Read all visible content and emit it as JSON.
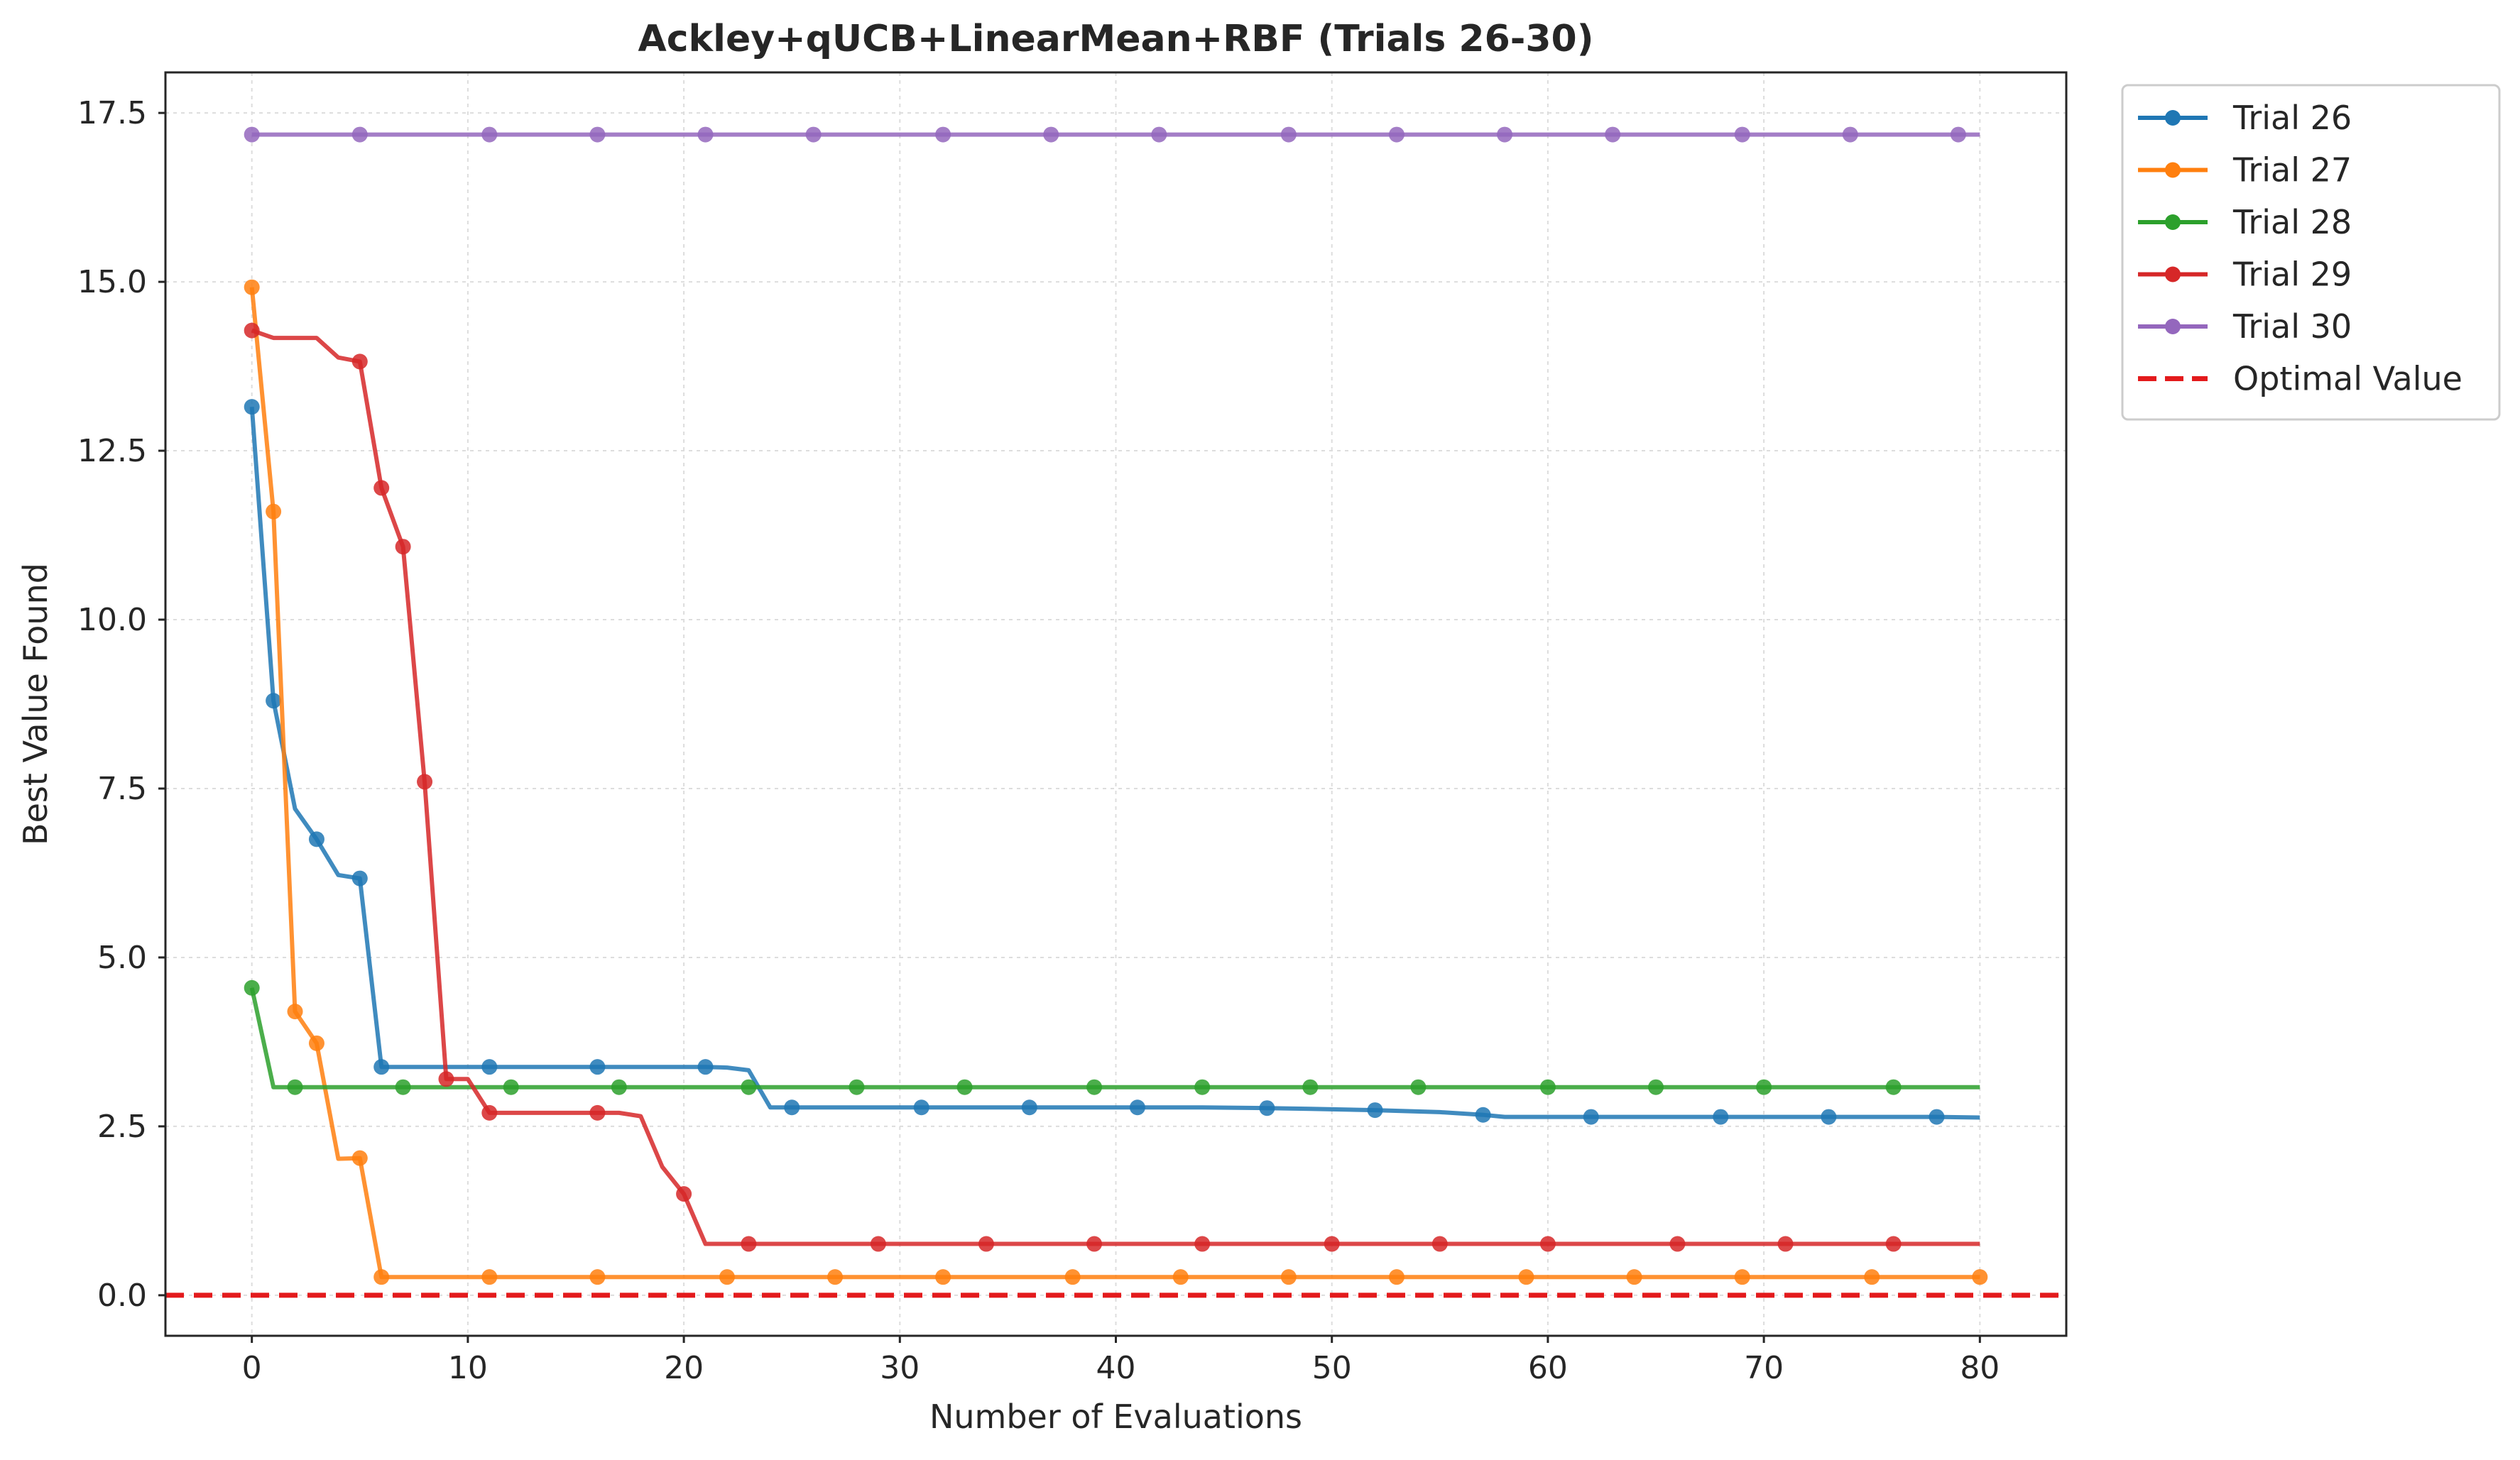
{
  "chart_data": {
    "type": "line",
    "title": "Ackley+qUCB+LinearMean+RBF (Trials 26-30)",
    "xlabel": "Number of Evaluations",
    "ylabel": "Best Value Found",
    "xlim": [
      -4,
      84
    ],
    "ylim": [
      -0.6,
      18.1
    ],
    "xticks": [
      0,
      10,
      20,
      30,
      40,
      50,
      60,
      70,
      80
    ],
    "yticks": [
      0.0,
      2.5,
      5.0,
      7.5,
      10.0,
      12.5,
      15.0,
      17.5
    ],
    "xtick_labels": [
      "0",
      "10",
      "20",
      "30",
      "40",
      "50",
      "60",
      "70",
      "80"
    ],
    "ytick_labels": [
      "0.0",
      "2.5",
      "5.0",
      "7.5",
      "10.0",
      "12.5",
      "15.0",
      "17.5"
    ],
    "grid": true,
    "legend_position": "outside-top-right",
    "series": [
      {
        "name": "Trial 26",
        "color": "#1f77b4",
        "points": [
          [
            0,
            13.15
          ],
          [
            1,
            8.8
          ],
          [
            2,
            7.2
          ],
          [
            3,
            6.75
          ],
          [
            4,
            6.22
          ],
          [
            5,
            6.17
          ],
          [
            6,
            3.38
          ],
          [
            7,
            3.38
          ],
          [
            11,
            3.38
          ],
          [
            16,
            3.38
          ],
          [
            21,
            3.38
          ],
          [
            22,
            3.37
          ],
          [
            23,
            3.33
          ],
          [
            24,
            2.78
          ],
          [
            25,
            2.78
          ],
          [
            31,
            2.78
          ],
          [
            36,
            2.78
          ],
          [
            41,
            2.78
          ],
          [
            44,
            2.78
          ],
          [
            47,
            2.77
          ],
          [
            49,
            2.76
          ],
          [
            52,
            2.74
          ],
          [
            55,
            2.71
          ],
          [
            57,
            2.67
          ],
          [
            58,
            2.64
          ],
          [
            62,
            2.64
          ],
          [
            68,
            2.64
          ],
          [
            73,
            2.64
          ],
          [
            78,
            2.64
          ],
          [
            80,
            2.63
          ]
        ],
        "markers": [
          [
            0,
            13.15
          ],
          [
            1,
            8.8
          ],
          [
            3,
            6.75
          ],
          [
            5,
            6.17
          ],
          [
            6,
            3.38
          ],
          [
            11,
            3.38
          ],
          [
            16,
            3.38
          ],
          [
            21,
            3.38
          ],
          [
            25,
            2.78
          ],
          [
            31,
            2.78
          ],
          [
            36,
            2.78
          ],
          [
            41,
            2.78
          ],
          [
            47,
            2.77
          ],
          [
            52,
            2.74
          ],
          [
            57,
            2.67
          ],
          [
            62,
            2.64
          ],
          [
            68,
            2.64
          ],
          [
            73,
            2.64
          ],
          [
            78,
            2.64
          ]
        ]
      },
      {
        "name": "Trial 27",
        "color": "#ff7f0e",
        "points": [
          [
            0,
            14.92
          ],
          [
            1,
            11.6
          ],
          [
            2,
            4.2
          ],
          [
            3,
            3.73
          ],
          [
            4,
            2.02
          ],
          [
            5,
            2.03
          ],
          [
            6,
            0.27
          ],
          [
            80,
            0.27
          ]
        ],
        "markers": [
          [
            0,
            14.92
          ],
          [
            1,
            11.6
          ],
          [
            2,
            4.2
          ],
          [
            3,
            3.73
          ],
          [
            5,
            2.03
          ],
          [
            6,
            0.27
          ],
          [
            11,
            0.27
          ],
          [
            16,
            0.27
          ],
          [
            22,
            0.27
          ],
          [
            27,
            0.27
          ],
          [
            32,
            0.27
          ],
          [
            38,
            0.27
          ],
          [
            43,
            0.27
          ],
          [
            48,
            0.27
          ],
          [
            53,
            0.27
          ],
          [
            59,
            0.27
          ],
          [
            64,
            0.27
          ],
          [
            69,
            0.27
          ],
          [
            75,
            0.27
          ],
          [
            80,
            0.27
          ]
        ]
      },
      {
        "name": "Trial 28",
        "color": "#2ca02c",
        "points": [
          [
            0,
            4.55
          ],
          [
            1,
            3.08
          ],
          [
            80,
            3.08
          ]
        ],
        "markers": [
          [
            0,
            4.55
          ],
          [
            2,
            3.08
          ],
          [
            7,
            3.08
          ],
          [
            12,
            3.08
          ],
          [
            17,
            3.08
          ],
          [
            23,
            3.08
          ],
          [
            28,
            3.08
          ],
          [
            33,
            3.08
          ],
          [
            39,
            3.08
          ],
          [
            44,
            3.08
          ],
          [
            49,
            3.08
          ],
          [
            54,
            3.08
          ],
          [
            60,
            3.08
          ],
          [
            65,
            3.08
          ],
          [
            70,
            3.08
          ],
          [
            76,
            3.08
          ]
        ]
      },
      {
        "name": "Trial 29",
        "color": "#d62728",
        "points": [
          [
            0,
            14.28
          ],
          [
            1,
            14.17
          ],
          [
            2,
            14.17
          ],
          [
            3,
            14.17
          ],
          [
            4,
            13.88
          ],
          [
            5,
            13.82
          ],
          [
            6,
            11.95
          ],
          [
            7,
            11.08
          ],
          [
            8,
            7.6
          ],
          [
            9,
            3.2
          ],
          [
            10,
            3.2
          ],
          [
            11,
            2.7
          ],
          [
            16,
            2.7
          ],
          [
            17,
            2.7
          ],
          [
            18,
            2.65
          ],
          [
            19,
            1.9
          ],
          [
            20,
            1.5
          ],
          [
            21,
            0.76
          ],
          [
            80,
            0.76
          ]
        ],
        "markers": [
          [
            0,
            14.28
          ],
          [
            5,
            13.82
          ],
          [
            6,
            11.95
          ],
          [
            7,
            11.08
          ],
          [
            8,
            7.6
          ],
          [
            9,
            3.2
          ],
          [
            11,
            2.7
          ],
          [
            16,
            2.7
          ],
          [
            20,
            1.5
          ],
          [
            23,
            0.76
          ],
          [
            29,
            0.76
          ],
          [
            34,
            0.76
          ],
          [
            39,
            0.76
          ],
          [
            44,
            0.76
          ],
          [
            50,
            0.76
          ],
          [
            55,
            0.76
          ],
          [
            60,
            0.76
          ],
          [
            66,
            0.76
          ],
          [
            71,
            0.76
          ],
          [
            76,
            0.76
          ]
        ]
      },
      {
        "name": "Trial 30",
        "color": "#9467bd",
        "points": [
          [
            0,
            17.18
          ],
          [
            80,
            17.18
          ]
        ],
        "markers": [
          [
            0,
            17.18
          ],
          [
            5,
            17.18
          ],
          [
            11,
            17.18
          ],
          [
            16,
            17.18
          ],
          [
            21,
            17.18
          ],
          [
            26,
            17.18
          ],
          [
            32,
            17.18
          ],
          [
            37,
            17.18
          ],
          [
            42,
            17.18
          ],
          [
            48,
            17.18
          ],
          [
            53,
            17.18
          ],
          [
            58,
            17.18
          ],
          [
            63,
            17.18
          ],
          [
            69,
            17.18
          ],
          [
            74,
            17.18
          ],
          [
            79,
            17.18
          ]
        ]
      }
    ],
    "reference_line": {
      "name": "Optimal Value",
      "value": 0,
      "color": "#e31a1c",
      "style": "dashed"
    }
  }
}
